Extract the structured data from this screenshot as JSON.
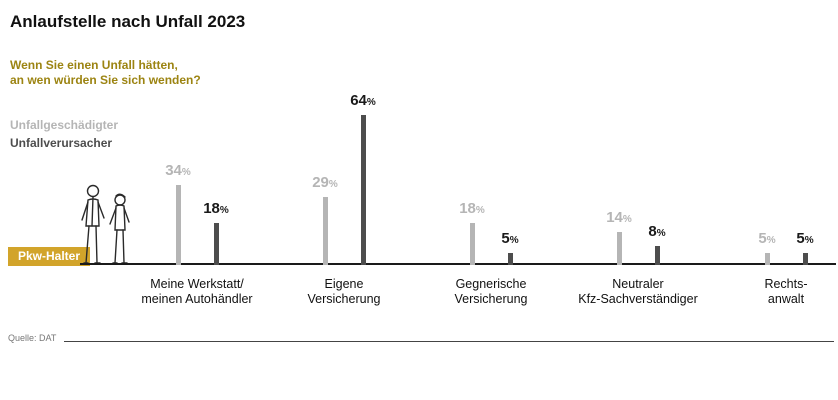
{
  "title": "Anlaufstelle nach Unfall 2023",
  "subtitle_lines": [
    "Wenn Sie einen Unfall hätten,",
    "an wen würden Sie sich wenden?"
  ],
  "group_label": "Pkw-Halter",
  "source": "Quelle: DAT",
  "colors": {
    "gold": "#d2a42a",
    "subtitle": "#9c8412",
    "light_series": "#b5b5b5",
    "dark_series": "#4d4d4d",
    "dark_label": "#1a1a1a"
  },
  "chart_data": {
    "type": "bar",
    "title": "Anlaufstelle nach Unfall 2023",
    "subtitle": "Wenn Sie einen Unfall hätten, an wen würden Sie sich wenden?",
    "xlabel": "",
    "ylabel": "Prozent",
    "ylim": [
      0,
      70
    ],
    "grid": false,
    "legend_position": "top-left",
    "unit": "%",
    "categories": [
      {
        "lines": [
          "Meine Werkstatt/",
          "meinen Autohändler"
        ]
      },
      {
        "lines": [
          "Eigene",
          "Versicherung"
        ]
      },
      {
        "lines": [
          "Gegnerische",
          "Versicherung"
        ]
      },
      {
        "lines": [
          "Neutraler",
          "Kfz-Sachverständiger"
        ]
      },
      {
        "lines": [
          "Rechts-",
          "anwalt"
        ]
      }
    ],
    "series": [
      {
        "name": "Unfallgeschädigter",
        "values": [
          34,
          29,
          18,
          14,
          5
        ],
        "color": "#b5b5b5",
        "label_color": "#b5b5b5"
      },
      {
        "name": "Unfallverursacher",
        "values": [
          18,
          64,
          5,
          8,
          5
        ],
        "color": "#4d4d4d",
        "label_color": "#1a1a1a"
      }
    ]
  }
}
